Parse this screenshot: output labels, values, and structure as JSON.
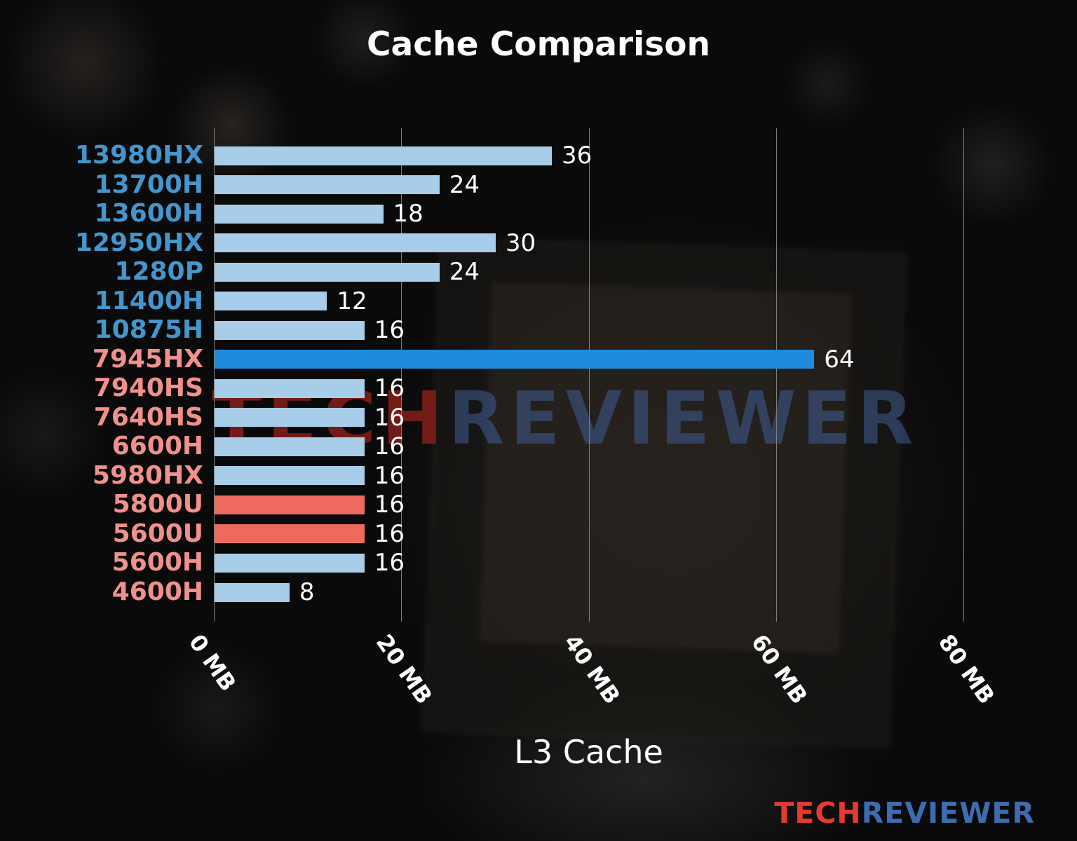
{
  "title": "Cache Comparison",
  "chart_data": {
    "type": "bar",
    "orientation": "horizontal",
    "title": "Cache Comparison",
    "xlabel": "L3 Cache",
    "ylabel": "",
    "xlim": [
      0,
      80
    ],
    "grid": "vertical",
    "x_ticks": [
      "0 MB",
      "20 MB",
      "40 MB",
      "60 MB",
      "80 MB"
    ],
    "x_tick_values": [
      0,
      20,
      40,
      60,
      80
    ],
    "categories": [
      "13980HX",
      "13700H",
      "13600H",
      "12950HX",
      "1280P",
      "11400H",
      "10875H",
      "7945HX",
      "7940HS",
      "7640HS",
      "6600H",
      "5980HX",
      "5800U",
      "5600U",
      "5600H",
      "4600H"
    ],
    "values": [
      36,
      24,
      18,
      30,
      24,
      12,
      16,
      64,
      16,
      16,
      16,
      16,
      16,
      16,
      16,
      8
    ],
    "bar_colors": [
      "#a8cde9",
      "#a8cde9",
      "#a8cde9",
      "#a8cde9",
      "#a8cde9",
      "#a8cde9",
      "#a8cde9",
      "#1e8bdd",
      "#a8cde9",
      "#a8cde9",
      "#a8cde9",
      "#a8cde9",
      "#ee6a5f",
      "#ee6a5f",
      "#a8cde9",
      "#a8cde9"
    ],
    "label_colors": [
      "#4496cc",
      "#4496cc",
      "#4496cc",
      "#4496cc",
      "#4496cc",
      "#4496cc",
      "#4496cc",
      "#f0918b",
      "#f0918b",
      "#f0918b",
      "#f0918b",
      "#f0918b",
      "#f0918b",
      "#f0918b",
      "#f0918b",
      "#f0918b"
    ],
    "value_label_color": "#ffffff",
    "gridline_color": "#7f7f7f"
  },
  "watermark": {
    "part1": "TECH",
    "part2": "REVIEWER"
  },
  "logo": {
    "part1": "TECH",
    "part2": "REVIEWER"
  }
}
